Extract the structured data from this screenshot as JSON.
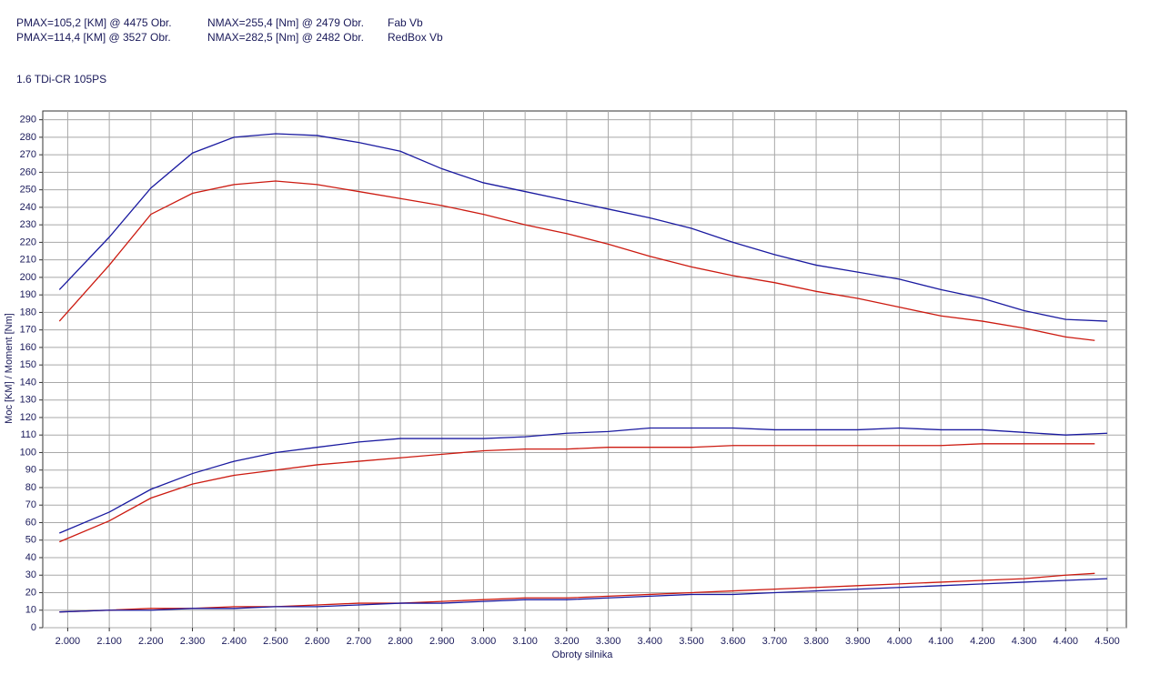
{
  "chart_data": {
    "type": "line",
    "subtitle": "1.6 TDi-CR 105PS",
    "x_label": "Obroty silnika",
    "y_label": "Moc [KM] / Moment [Nm]",
    "xlim": [
      1940,
      4546
    ],
    "ylim": [
      0,
      295
    ],
    "grid": true,
    "xticks": [
      {
        "value": 2000,
        "label": "2.000"
      },
      {
        "value": 2100,
        "label": "2.100"
      },
      {
        "value": 2200,
        "label": "2.200"
      },
      {
        "value": 2300,
        "label": "2.300"
      },
      {
        "value": 2400,
        "label": "2.400"
      },
      {
        "value": 2500,
        "label": "2.500"
      },
      {
        "value": 2600,
        "label": "2.600"
      },
      {
        "value": 2700,
        "label": "2.700"
      },
      {
        "value": 2800,
        "label": "2.800"
      },
      {
        "value": 2900,
        "label": "2.900"
      },
      {
        "value": 3000,
        "label": "3.000"
      },
      {
        "value": 3100,
        "label": "3.100"
      },
      {
        "value": 3200,
        "label": "3.200"
      },
      {
        "value": 3300,
        "label": "3.300"
      },
      {
        "value": 3400,
        "label": "3.400"
      },
      {
        "value": 3500,
        "label": "3.500"
      },
      {
        "value": 3600,
        "label": "3.600"
      },
      {
        "value": 3700,
        "label": "3.700"
      },
      {
        "value": 3800,
        "label": "3.800"
      },
      {
        "value": 3900,
        "label": "3.900"
      },
      {
        "value": 4000,
        "label": "4.000"
      },
      {
        "value": 4100,
        "label": "4.100"
      },
      {
        "value": 4200,
        "label": "4.200"
      },
      {
        "value": 4300,
        "label": "4.300"
      },
      {
        "value": 4400,
        "label": "4.400"
      },
      {
        "value": 4500,
        "label": "4.500"
      }
    ],
    "yticks": [
      0,
      10,
      20,
      30,
      40,
      50,
      60,
      70,
      80,
      90,
      100,
      110,
      120,
      130,
      140,
      150,
      160,
      170,
      180,
      190,
      200,
      210,
      220,
      230,
      240,
      250,
      260,
      270,
      280,
      290
    ],
    "series": [
      {
        "name": "Fab Vb",
        "color": "#cc1a10",
        "pmax_label": "PMAX=105,2 [KM] @ 4475 Obr.",
        "nmax_label": "NMAX=255,4 [Nm] @ 2479 Obr.",
        "x": [
          1980,
          2100,
          2200,
          2300,
          2400,
          2500,
          2600,
          2700,
          2800,
          2900,
          3000,
          3100,
          3200,
          3300,
          3400,
          3500,
          3600,
          3700,
          3800,
          3900,
          4000,
          4100,
          4200,
          4300,
          4400,
          4470
        ],
        "torque": [
          175,
          207,
          236,
          248,
          253,
          255,
          253,
          249,
          245,
          241,
          236,
          230,
          225,
          219,
          212,
          206,
          201,
          197,
          192,
          188,
          183,
          178,
          175,
          171,
          166,
          164
        ],
        "power": [
          49,
          61,
          74,
          82,
          87,
          90,
          93,
          95,
          97,
          99,
          101,
          102,
          102,
          103,
          103,
          103,
          104,
          104,
          104,
          104,
          104,
          104,
          105,
          105,
          105,
          105
        ],
        "loss": [
          9,
          10,
          11,
          11,
          12,
          12,
          13,
          14,
          14,
          15,
          16,
          17,
          17,
          18,
          19,
          20,
          21,
          22,
          23,
          24,
          25,
          26,
          27,
          28,
          30,
          31
        ]
      },
      {
        "name": "RedBox Vb",
        "color": "#1a1aa0",
        "pmax_label": "PMAX=114,4 [KM] @ 3527 Obr.",
        "nmax_label": "NMAX=282,5 [Nm] @ 2482 Obr.",
        "x": [
          1980,
          2100,
          2200,
          2300,
          2400,
          2500,
          2600,
          2700,
          2800,
          2900,
          3000,
          3100,
          3200,
          3300,
          3400,
          3500,
          3600,
          3700,
          3800,
          3900,
          4000,
          4100,
          4200,
          4300,
          4400,
          4500
        ],
        "torque": [
          193,
          223,
          251,
          271,
          280,
          282,
          281,
          277,
          272,
          262,
          254,
          249,
          244,
          239,
          234,
          228,
          220,
          213,
          207,
          203,
          199,
          193,
          188,
          181,
          176,
          175
        ],
        "power": [
          54,
          66,
          79,
          88,
          95,
          100,
          103,
          106,
          108,
          108,
          108,
          109,
          111,
          112,
          114,
          114,
          114,
          113,
          113,
          113,
          114,
          113,
          113,
          111.5,
          110,
          111
        ],
        "loss": [
          9,
          10,
          10,
          11,
          11,
          12,
          12,
          13,
          14,
          14,
          15,
          16,
          16,
          17,
          18,
          19,
          19,
          20,
          21,
          22,
          23,
          24,
          25,
          26,
          27,
          28
        ]
      }
    ]
  }
}
